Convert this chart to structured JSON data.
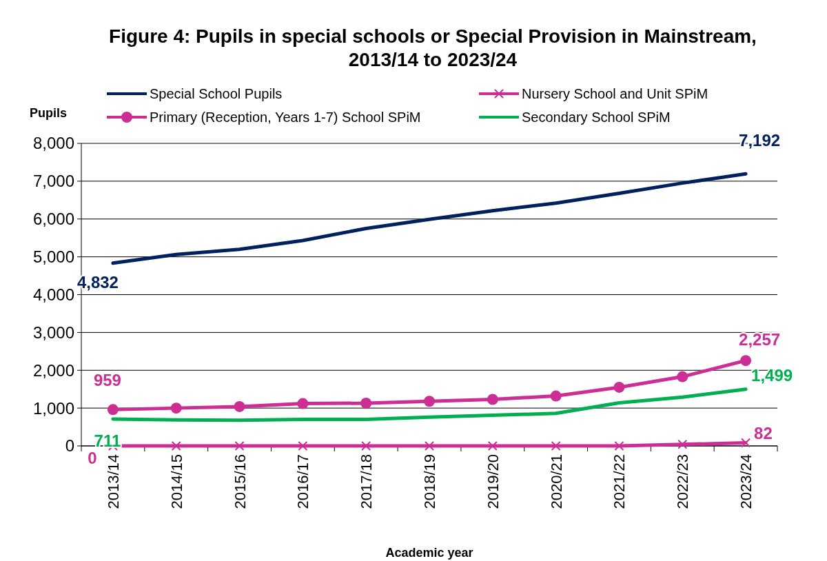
{
  "chart_data": {
    "type": "line",
    "title": "Figure 4: Pupils in special schools or Special Provision in Mainstream, 2013/14 to 2023/24",
    "xlabel": "Academic year",
    "ylabel": "Pupils",
    "categories": [
      "2013/14",
      "2014/15",
      "2015/16",
      "2016/17",
      "2017/18",
      "2018/19",
      "2019/20",
      "2020/21",
      "2021/22",
      "2022/23",
      "2023/24"
    ],
    "ylim": [
      0,
      8000
    ],
    "yticks": [
      {
        "value": 0,
        "label": "0"
      },
      {
        "value": 1000,
        "label": "1,000"
      },
      {
        "value": 2000,
        "label": "2,000"
      },
      {
        "value": 3000,
        "label": "3,000"
      },
      {
        "value": 4000,
        "label": "4,000"
      },
      {
        "value": 5000,
        "label": "5,000"
      },
      {
        "value": 6000,
        "label": "6,000"
      },
      {
        "value": 7000,
        "label": "7,000"
      },
      {
        "value": 8000,
        "label": "8,000"
      }
    ],
    "grid": "y",
    "legend": "top",
    "series": [
      {
        "name": "Special School Pupils",
        "color": "#002060",
        "marker": "none",
        "values": [
          4832,
          5060,
          5200,
          5430,
          5750,
          5990,
          6220,
          6420,
          6680,
          6950,
          7192
        ],
        "value_labels": [
          "4,832",
          null,
          null,
          null,
          null,
          null,
          null,
          null,
          null,
          null,
          "7,192"
        ]
      },
      {
        "name": "Nursery School and Unit SPiM",
        "color": "#cc2e94",
        "marker": "cross",
        "values": [
          0,
          0,
          0,
          0,
          0,
          0,
          0,
          0,
          0,
          40,
          82
        ],
        "value_labels": [
          "0",
          null,
          null,
          null,
          null,
          null,
          null,
          null,
          null,
          null,
          "82"
        ]
      },
      {
        "name": "Primary (Reception, Years 1-7) School SPiM",
        "color": "#cc2e94",
        "marker": "circle",
        "values": [
          959,
          1000,
          1040,
          1120,
          1130,
          1180,
          1230,
          1320,
          1550,
          1830,
          2257
        ],
        "value_labels": [
          "959",
          null,
          null,
          null,
          null,
          null,
          null,
          null,
          null,
          null,
          "2,257"
        ]
      },
      {
        "name": "Secondary School SPiM",
        "color": "#00b050",
        "marker": "none",
        "values": [
          711,
          690,
          680,
          700,
          700,
          760,
          810,
          860,
          1140,
          1290,
          1499
        ],
        "value_labels": [
          "711",
          null,
          null,
          null,
          null,
          null,
          null,
          null,
          null,
          null,
          "1,499"
        ]
      }
    ]
  }
}
